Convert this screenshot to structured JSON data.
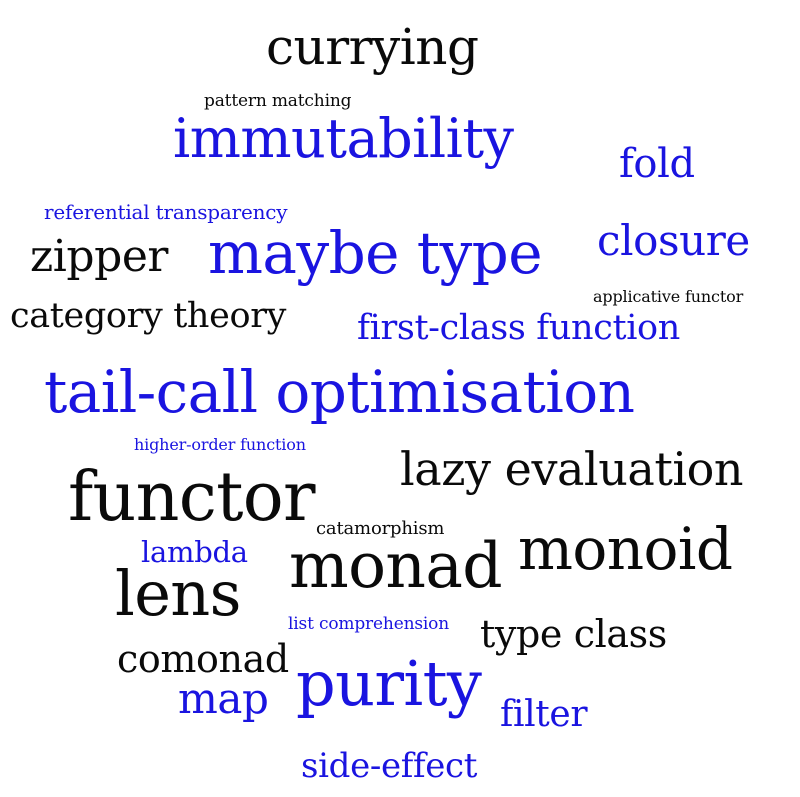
{
  "colors": {
    "black": "#0a0a0a",
    "blue": "#1a14e0",
    "background": "#ffffff"
  },
  "words": [
    {
      "text": "currying",
      "color": "black"
    },
    {
      "text": "pattern matching",
      "color": "black"
    },
    {
      "text": "immutability",
      "color": "blue"
    },
    {
      "text": "fold",
      "color": "blue"
    },
    {
      "text": "referential transparency",
      "color": "blue"
    },
    {
      "text": "closure",
      "color": "blue"
    },
    {
      "text": "zipper",
      "color": "black"
    },
    {
      "text": "maybe type",
      "color": "blue"
    },
    {
      "text": "applicative functor",
      "color": "black"
    },
    {
      "text": "category theory",
      "color": "black"
    },
    {
      "text": "first-class function",
      "color": "blue"
    },
    {
      "text": "tail-call optimisation",
      "color": "blue"
    },
    {
      "text": "higher-order function",
      "color": "blue"
    },
    {
      "text": "lazy evaluation",
      "color": "black"
    },
    {
      "text": "functor",
      "color": "black"
    },
    {
      "text": "catamorphism",
      "color": "black"
    },
    {
      "text": "lambda",
      "color": "blue"
    },
    {
      "text": "monoid",
      "color": "black"
    },
    {
      "text": "monad",
      "color": "black"
    },
    {
      "text": "lens",
      "color": "black"
    },
    {
      "text": "list comprehension",
      "color": "blue"
    },
    {
      "text": "type class",
      "color": "black"
    },
    {
      "text": "comonad",
      "color": "black"
    },
    {
      "text": "map",
      "color": "blue"
    },
    {
      "text": "purity",
      "color": "blue"
    },
    {
      "text": "filter",
      "color": "blue"
    },
    {
      "text": "side-effect",
      "color": "blue"
    }
  ]
}
